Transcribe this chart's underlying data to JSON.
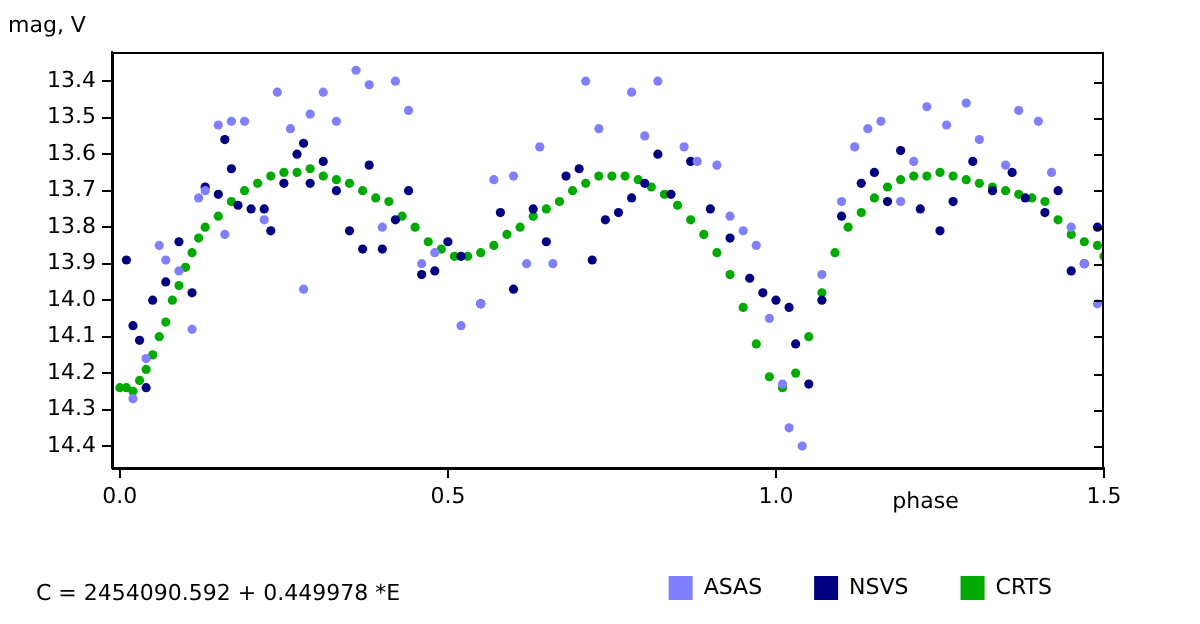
{
  "chart_data": {
    "type": "scatter",
    "ylabel": "mag, V",
    "xlabel": "phase",
    "annotations": [
      "C = 2454090.592 + 0.449978 *E"
    ],
    "xlim": [
      -0.012,
      1.5
    ],
    "xticks": [
      {
        "value": 0,
        "label": "0.0"
      },
      0.5,
      {
        "value": 1,
        "label": "1.0"
      },
      1.5
    ],
    "ylim": [
      14.46,
      13.32
    ],
    "yticks": [
      13.4,
      13.5,
      13.6,
      13.7,
      13.8,
      13.9,
      {
        "value": 14,
        "label": "14.0"
      },
      14.1,
      14.2,
      14.3,
      14.4
    ],
    "grid": false,
    "legend": "bottom",
    "marker": "circle",
    "series": [
      {
        "name": "ASAS",
        "color": "#8080ff",
        "x": [
          0.02,
          0.04,
          0.06,
          0.07,
          0.09,
          0.11,
          0.12,
          0.13,
          0.15,
          0.16,
          0.17,
          0.19,
          0.22,
          0.24,
          0.26,
          0.28,
          0.29,
          0.31,
          0.33,
          0.36,
          0.38,
          0.4,
          0.42,
          0.44,
          0.46,
          0.48,
          0.52,
          0.55,
          0.57,
          0.6,
          0.62,
          0.64,
          0.66,
          0.71,
          0.73,
          0.78,
          0.8,
          0.82,
          0.86,
          0.88,
          0.91,
          0.93,
          0.95,
          0.97,
          0.99,
          1.01,
          1.02,
          1.04,
          1.07,
          1.1,
          1.12,
          1.14,
          1.16,
          1.19,
          1.21,
          1.23,
          1.26,
          1.29,
          1.31,
          1.35,
          1.37,
          1.4,
          1.42,
          1.45,
          1.47,
          1.49
        ],
        "values": [
          14.27,
          14.16,
          13.85,
          13.89,
          13.92,
          14.08,
          13.72,
          13.7,
          13.52,
          13.82,
          13.51,
          13.51,
          13.78,
          13.43,
          13.53,
          13.97,
          13.49,
          13.43,
          13.51,
          13.37,
          13.41,
          13.8,
          13.4,
          13.48,
          13.9,
          13.87,
          14.07,
          14.01,
          13.67,
          13.66,
          13.9,
          13.58,
          13.9,
          13.4,
          13.53,
          13.43,
          13.55,
          13.4,
          13.58,
          13.62,
          13.63,
          13.77,
          13.81,
          13.85,
          14.05,
          14.23,
          14.35,
          14.4,
          13.93,
          13.73,
          13.58,
          13.53,
          13.51,
          13.73,
          13.62,
          13.47,
          13.52,
          13.46,
          13.56,
          13.63,
          13.48,
          13.51,
          13.65,
          13.8,
          13.9,
          14.01
        ]
      },
      {
        "name": "NSVS",
        "color": "#000080",
        "x": [
          0.01,
          0.02,
          0.03,
          0.04,
          0.05,
          0.07,
          0.09,
          0.11,
          0.13,
          0.15,
          0.16,
          0.17,
          0.18,
          0.2,
          0.22,
          0.23,
          0.25,
          0.27,
          0.28,
          0.29,
          0.31,
          0.33,
          0.35,
          0.37,
          0.38,
          0.4,
          0.42,
          0.44,
          0.46,
          0.48,
          0.5,
          0.52,
          0.55,
          0.58,
          0.6,
          0.63,
          0.65,
          0.68,
          0.7,
          0.72,
          0.74,
          0.76,
          0.78,
          0.8,
          0.82,
          0.84,
          0.87,
          0.9,
          0.93,
          0.96,
          0.98,
          1.0,
          1.02,
          1.03,
          1.05,
          1.07,
          1.1,
          1.13,
          1.15,
          1.17,
          1.19,
          1.22,
          1.25,
          1.27,
          1.3,
          1.33,
          1.36,
          1.38,
          1.41,
          1.43,
          1.45,
          1.47,
          1.49
        ],
        "values": [
          13.89,
          14.07,
          14.11,
          14.24,
          14.0,
          13.95,
          13.84,
          13.98,
          13.69,
          13.71,
          13.56,
          13.64,
          13.74,
          13.75,
          13.75,
          13.81,
          13.68,
          13.6,
          13.57,
          13.68,
          13.62,
          13.7,
          13.81,
          13.86,
          13.63,
          13.86,
          13.78,
          13.7,
          13.93,
          13.92,
          13.84,
          13.88,
          14.01,
          13.76,
          13.97,
          13.75,
          13.84,
          13.66,
          13.64,
          13.89,
          13.78,
          13.76,
          13.72,
          13.68,
          13.6,
          13.71,
          13.62,
          13.75,
          13.83,
          13.94,
          13.98,
          14.0,
          14.02,
          14.12,
          14.23,
          14.0,
          13.77,
          13.68,
          13.65,
          13.73,
          13.59,
          13.75,
          13.81,
          13.73,
          13.62,
          13.7,
          13.65,
          13.72,
          13.76,
          13.7,
          13.92,
          13.9,
          13.8
        ]
      },
      {
        "name": "CRTS",
        "color": "#00aa00",
        "x": [
          0,
          0.01,
          0.02,
          0.03,
          0.04,
          0.05,
          0.06,
          0.07,
          0.08,
          0.09,
          0.1,
          0.11,
          0.12,
          0.13,
          0.15,
          0.17,
          0.19,
          0.21,
          0.23,
          0.25,
          0.27,
          0.29,
          0.31,
          0.33,
          0.35,
          0.37,
          0.39,
          0.41,
          0.43,
          0.45,
          0.47,
          0.49,
          0.51,
          0.53,
          0.55,
          0.57,
          0.59,
          0.61,
          0.63,
          0.65,
          0.67,
          0.69,
          0.71,
          0.73,
          0.75,
          0.77,
          0.79,
          0.81,
          0.83,
          0.85,
          0.87,
          0.89,
          0.91,
          0.93,
          0.95,
          0.97,
          0.99,
          1.01,
          1.03,
          1.05,
          1.07,
          1.09,
          1.11,
          1.13,
          1.15,
          1.17,
          1.19,
          1.21,
          1.23,
          1.25,
          1.27,
          1.29,
          1.31,
          1.33,
          1.35,
          1.37,
          1.39,
          1.41,
          1.43,
          1.45,
          1.47,
          1.49,
          1.5
        ],
        "values": [
          14.24,
          14.24,
          14.25,
          14.22,
          14.19,
          14.15,
          14.1,
          14.06,
          14.0,
          13.96,
          13.91,
          13.87,
          13.83,
          13.8,
          13.77,
          13.73,
          13.7,
          13.68,
          13.66,
          13.65,
          13.65,
          13.64,
          13.66,
          13.67,
          13.68,
          13.7,
          13.72,
          13.73,
          13.77,
          13.8,
          13.84,
          13.86,
          13.88,
          13.88,
          13.87,
          13.85,
          13.82,
          13.8,
          13.77,
          13.75,
          13.73,
          13.7,
          13.68,
          13.66,
          13.66,
          13.66,
          13.67,
          13.69,
          13.71,
          13.74,
          13.78,
          13.82,
          13.87,
          13.93,
          14.02,
          14.12,
          14.21,
          14.24,
          14.2,
          14.1,
          13.98,
          13.87,
          13.8,
          13.76,
          13.72,
          13.69,
          13.67,
          13.66,
          13.66,
          13.65,
          13.66,
          13.67,
          13.68,
          13.69,
          13.7,
          13.71,
          13.72,
          13.73,
          13.78,
          13.82,
          13.84,
          13.85,
          13.88
        ]
      }
    ]
  }
}
